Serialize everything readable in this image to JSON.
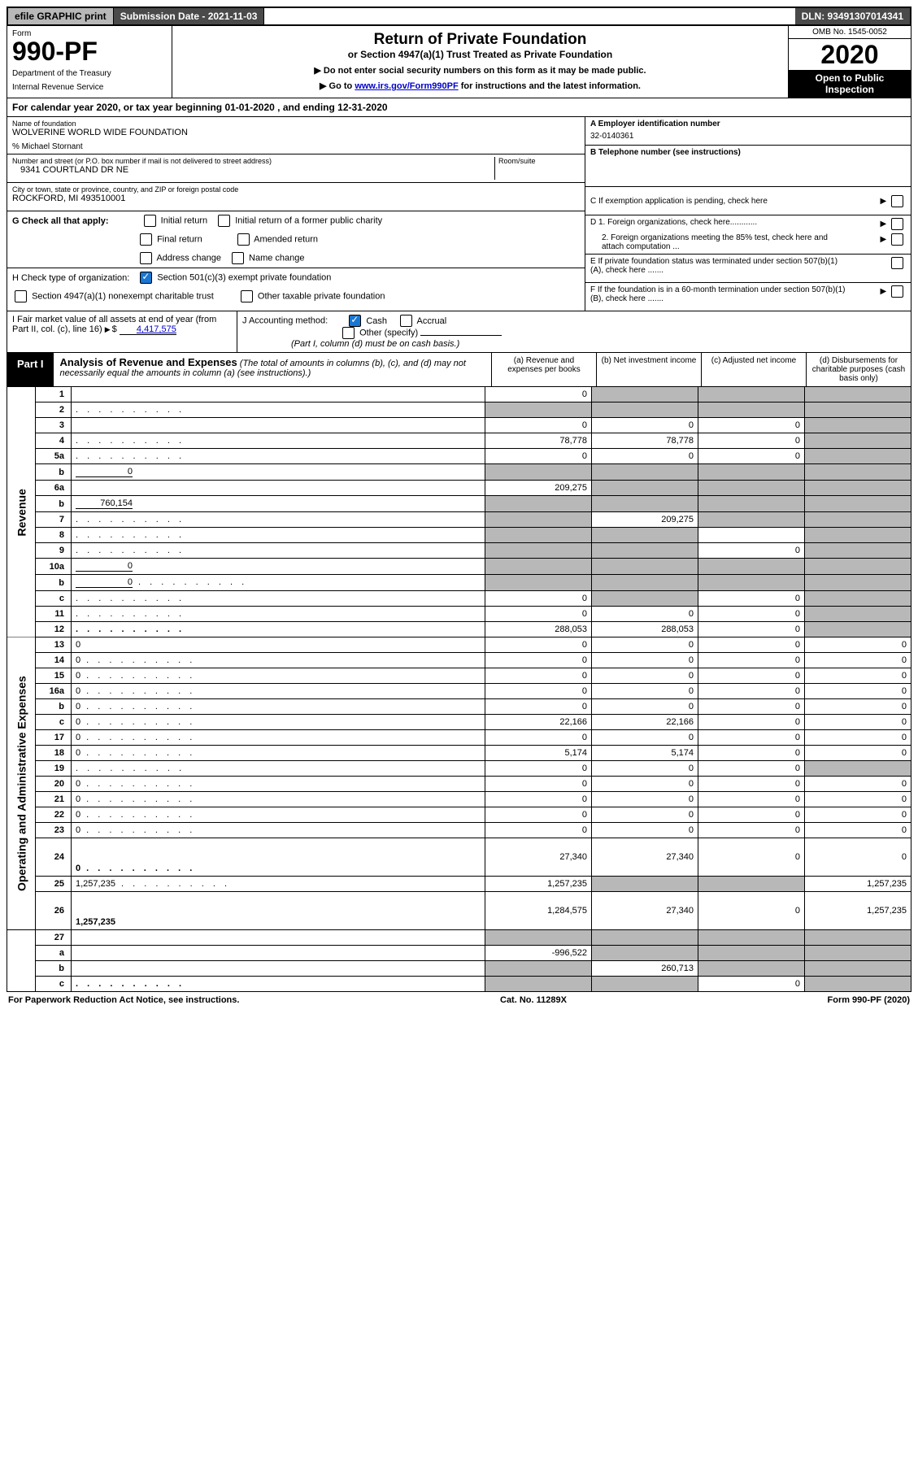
{
  "top": {
    "efile": "efile GRAPHIC print",
    "submission": "Submission Date - 2021-11-03",
    "dln": "DLN: 93491307014341"
  },
  "header": {
    "form_label": "Form",
    "form_number": "990-PF",
    "dept1": "Department of the Treasury",
    "dept2": "Internal Revenue Service",
    "title": "Return of Private Foundation",
    "subtitle": "or Section 4947(a)(1) Trust Treated as Private Foundation",
    "note1": "▶ Do not enter social security numbers on this form as it may be made public.",
    "note2_pre": "▶ Go to ",
    "note2_link": "www.irs.gov/Form990PF",
    "note2_post": " for instructions and the latest information.",
    "omb": "OMB No. 1545-0052",
    "year": "2020",
    "open": "Open to Public Inspection"
  },
  "cal_year": "For calendar year 2020, or tax year beginning 01-01-2020                                    , and ending 12-31-2020",
  "foundation": {
    "name_label": "Name of foundation",
    "name": "WOLVERINE WORLD WIDE FOUNDATION",
    "care_of": "% Michael Stornant",
    "addr_label": "Number and street (or P.O. box number if mail is not delivered to street address)",
    "room_label": "Room/suite",
    "addr": "9341 COURTLAND DR NE",
    "city_label": "City or town, state or province, country, and ZIP or foreign postal code",
    "city": "ROCKFORD, MI  493510001",
    "ein_label": "A Employer identification number",
    "ein": "32-0140361",
    "phone_label": "B Telephone number (see instructions)",
    "pending": "C If exemption application is pending, check here",
    "d1": "D 1. Foreign organizations, check here............",
    "d2": "2. Foreign organizations meeting the 85% test, check here and attach computation ...",
    "e": "E  If private foundation status was terminated under section 507(b)(1)(A), check here .......",
    "f": "F  If the foundation is in a 60-month termination under section 507(b)(1)(B), check here .......",
    "g_label": "G Check all that apply:",
    "g_initial": "Initial return",
    "g_initial_former": "Initial return of a former public charity",
    "g_final": "Final return",
    "g_amended": "Amended return",
    "g_address": "Address change",
    "g_name": "Name change",
    "h_label": "H Check type of organization:",
    "h_501c3": "Section 501(c)(3) exempt private foundation",
    "h_4947": "Section 4947(a)(1) nonexempt charitable trust",
    "h_other_tax": "Other taxable private foundation",
    "i_label": "I Fair market value of all assets at end of year (from Part II, col. (c), line 16)",
    "i_value": "4,417,575",
    "j_label": "J Accounting method:",
    "j_cash": "Cash",
    "j_accrual": "Accrual",
    "j_other": "Other (specify)",
    "j_note": "(Part I, column (d) must be on cash basis.)"
  },
  "part1": {
    "label": "Part I",
    "title": "Analysis of Revenue and Expenses",
    "title_note": "(The total of amounts in columns (b), (c), and (d) may not necessarily equal the amounts in column (a) (see instructions).)",
    "col_a": "(a) Revenue and expenses per books",
    "col_b": "(b) Net investment income",
    "col_c": "(c) Adjusted net income",
    "col_d": "(d) Disbursements for charitable purposes (cash basis only)"
  },
  "side_labels": {
    "revenue": "Revenue",
    "expenses": "Operating and Administrative Expenses"
  },
  "rows": [
    {
      "n": "1",
      "d": "",
      "a": "0",
      "b": "",
      "c": "",
      "bs": true,
      "cs": true,
      "ds": true
    },
    {
      "n": "2",
      "d": "",
      "a": "",
      "b": "",
      "c": "",
      "as": true,
      "bs": true,
      "cs": true,
      "ds": true,
      "dots": true
    },
    {
      "n": "3",
      "d": "",
      "a": "0",
      "b": "0",
      "c": "0",
      "ds": true
    },
    {
      "n": "4",
      "d": "",
      "a": "78,778",
      "b": "78,778",
      "c": "0",
      "ds": true,
      "dots": true
    },
    {
      "n": "5a",
      "d": "",
      "a": "0",
      "b": "0",
      "c": "0",
      "ds": true,
      "dots": true
    },
    {
      "n": "b",
      "d": "",
      "inline": "0",
      "a": "",
      "b": "",
      "c": "",
      "as": true,
      "bs": true,
      "cs": true,
      "ds": true
    },
    {
      "n": "6a",
      "d": "",
      "a": "209,275",
      "b": "",
      "c": "",
      "bs": true,
      "cs": true,
      "ds": true
    },
    {
      "n": "b",
      "d": "",
      "inline": "760,154",
      "a": "",
      "b": "",
      "c": "",
      "as": true,
      "bs": true,
      "cs": true,
      "ds": true
    },
    {
      "n": "7",
      "d": "",
      "a": "",
      "b": "209,275",
      "c": "",
      "as": true,
      "cs": true,
      "ds": true,
      "dots": true
    },
    {
      "n": "8",
      "d": "",
      "a": "",
      "b": "",
      "c": "",
      "as": true,
      "bs": true,
      "ds": true,
      "dots": true
    },
    {
      "n": "9",
      "d": "",
      "a": "",
      "b": "",
      "c": "0",
      "as": true,
      "bs": true,
      "ds": true,
      "dots": true
    },
    {
      "n": "10a",
      "d": "",
      "inline": "0",
      "a": "",
      "b": "",
      "c": "",
      "as": true,
      "bs": true,
      "cs": true,
      "ds": true
    },
    {
      "n": "b",
      "d": "",
      "inline": "0",
      "a": "",
      "b": "",
      "c": "",
      "as": true,
      "bs": true,
      "cs": true,
      "ds": true,
      "dots": true
    },
    {
      "n": "c",
      "d": "",
      "a": "0",
      "b": "",
      "c": "0",
      "bs": true,
      "ds": true,
      "dots": true
    },
    {
      "n": "11",
      "d": "",
      "a": "0",
      "b": "0",
      "c": "0",
      "ds": true,
      "dots": true
    },
    {
      "n": "12",
      "d": "",
      "a": "288,053",
      "b": "288,053",
      "c": "0",
      "ds": true,
      "bold": true,
      "dots": true
    }
  ],
  "exp_rows": [
    {
      "n": "13",
      "d": "0",
      "a": "0",
      "b": "0",
      "c": "0"
    },
    {
      "n": "14",
      "d": "0",
      "a": "0",
      "b": "0",
      "c": "0",
      "dots": true
    },
    {
      "n": "15",
      "d": "0",
      "a": "0",
      "b": "0",
      "c": "0",
      "dots": true
    },
    {
      "n": "16a",
      "d": "0",
      "a": "0",
      "b": "0",
      "c": "0",
      "dots": true
    },
    {
      "n": "b",
      "d": "0",
      "a": "0",
      "b": "0",
      "c": "0",
      "dots": true
    },
    {
      "n": "c",
      "d": "0",
      "a": "22,166",
      "b": "22,166",
      "c": "0",
      "dots": true
    },
    {
      "n": "17",
      "d": "0",
      "a": "0",
      "b": "0",
      "c": "0",
      "dots": true
    },
    {
      "n": "18",
      "d": "0",
      "a": "5,174",
      "b": "5,174",
      "c": "0",
      "dots": true
    },
    {
      "n": "19",
      "d": "",
      "a": "0",
      "b": "0",
      "c": "0",
      "ds": true,
      "dots": true
    },
    {
      "n": "20",
      "d": "0",
      "a": "0",
      "b": "0",
      "c": "0",
      "dots": true
    },
    {
      "n": "21",
      "d": "0",
      "a": "0",
      "b": "0",
      "c": "0",
      "dots": true
    },
    {
      "n": "22",
      "d": "0",
      "a": "0",
      "b": "0",
      "c": "0",
      "dots": true
    },
    {
      "n": "23",
      "d": "0",
      "a": "0",
      "b": "0",
      "c": "0",
      "dots": true
    },
    {
      "n": "24",
      "d": "0",
      "a": "27,340",
      "b": "27,340",
      "c": "0",
      "bold": true,
      "dots": true,
      "tall": true
    },
    {
      "n": "25",
      "d": "1,257,235",
      "a": "1,257,235",
      "b": "",
      "c": "",
      "bs": true,
      "cs": true,
      "dots": true
    },
    {
      "n": "26",
      "d": "1,257,235",
      "a": "1,284,575",
      "b": "27,340",
      "c": "0",
      "bold": true,
      "tall": true
    }
  ],
  "bottom_rows": [
    {
      "n": "27",
      "d": "",
      "a": "",
      "b": "",
      "c": "",
      "as": true,
      "bs": true,
      "cs": true,
      "ds": true
    },
    {
      "n": "a",
      "d": "",
      "a": "-996,522",
      "b": "",
      "c": "",
      "bs": true,
      "cs": true,
      "ds": true,
      "bold": true
    },
    {
      "n": "b",
      "d": "",
      "a": "",
      "b": "260,713",
      "c": "",
      "as": true,
      "cs": true,
      "ds": true,
      "bold": true
    },
    {
      "n": "c",
      "d": "",
      "a": "",
      "b": "",
      "c": "0",
      "as": true,
      "bs": true,
      "ds": true,
      "bold": true,
      "dots": true
    }
  ],
  "footer": {
    "left": "For Paperwork Reduction Act Notice, see instructions.",
    "center": "Cat. No. 11289X",
    "right": "Form 990-PF (2020)"
  }
}
